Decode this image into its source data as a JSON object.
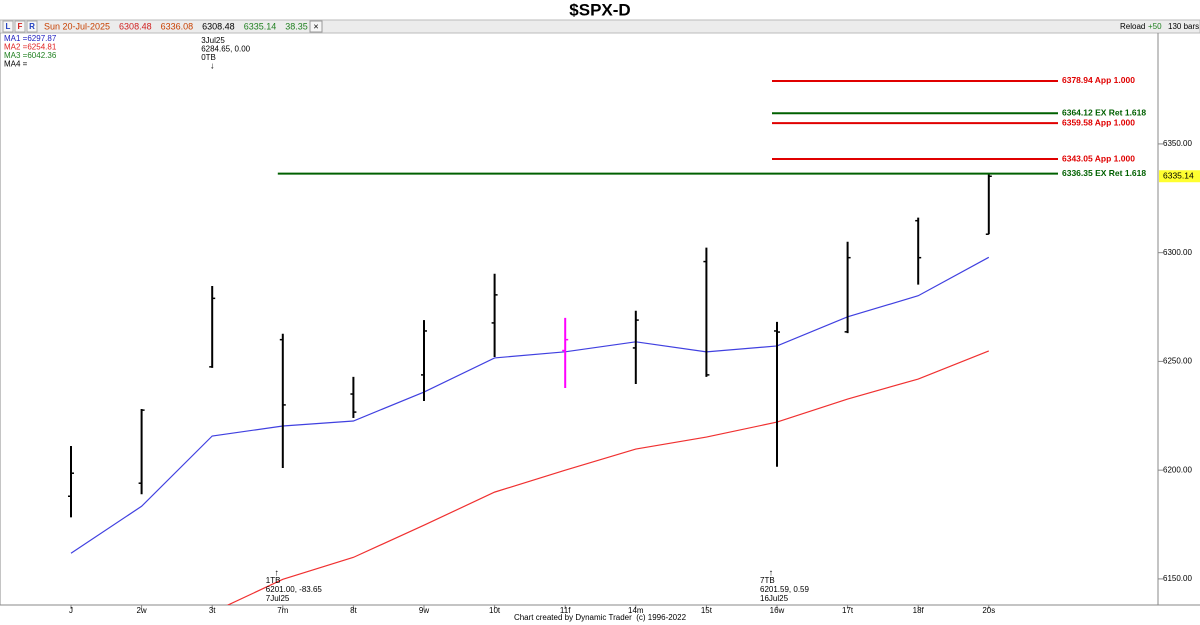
{
  "toolbar": {
    "buttons": [
      "L",
      "F",
      "R"
    ],
    "info": [
      {
        "text": "Sun 20-Jul-2025",
        "color": "#c84000"
      },
      {
        "text": "6308.48",
        "color": "#d02020"
      },
      {
        "text": "6336.08",
        "color": "#c84000"
      },
      {
        "text": "6308.48",
        "color": "#000000"
      },
      {
        "text": "6335.14",
        "color": "#208020"
      },
      {
        "text": "38.35",
        "color": "#208020"
      }
    ],
    "right": [
      {
        "text": "Reload",
        "color": "#000000"
      },
      {
        "text": "+50",
        "color": "#208020"
      },
      {
        "text": "130 bars",
        "color": "#000000"
      }
    ]
  },
  "chart_data": {
    "type": "ohlc",
    "title": "$SPX-D",
    "categories": [
      "J",
      "2w",
      "3t",
      "7m",
      "8t",
      "9w",
      "10t",
      "11f",
      "14m",
      "15t",
      "16w",
      "17t",
      "18f",
      "20s"
    ],
    "open": [
      6188.0,
      6194.0,
      6247.5,
      6260.0,
      6235.0,
      6243.8,
      6267.7,
      6255.0,
      6256.2,
      6295.9,
      6264.0,
      6263.6,
      6314.7,
      6308.48
    ],
    "high": [
      6211.1,
      6228.1,
      6284.65,
      6262.7,
      6242.9,
      6269.0,
      6290.3,
      6270.0,
      6273.3,
      6302.3,
      6268.2,
      6305.0,
      6316.1,
      6336.08
    ],
    "low": [
      6178.3,
      6188.9,
      6247.0,
      6201.0,
      6224.0,
      6231.8,
      6252.0,
      6237.8,
      6239.6,
      6242.9,
      6201.59,
      6263.0,
      6285.3,
      6308.48
    ],
    "close": [
      6198.6,
      6227.6,
      6279.0,
      6230.0,
      6226.7,
      6264.0,
      6280.6,
      6260.0,
      6269.0,
      6243.8,
      6263.5,
      6297.7,
      6297.7,
      6335.14
    ],
    "bar_colors": [
      "#000000",
      "#000000",
      "#000000",
      "#000000",
      "#000000",
      "#000000",
      "#000000",
      "#ff00ff",
      "#000000",
      "#000000",
      "#000000",
      "#000000",
      "#000000",
      "#000000"
    ],
    "ma_labels": [
      {
        "text": "MA1 =6297.87",
        "color": "#2020c0"
      },
      {
        "text": "MA2 =6254.81",
        "color": "#e02020"
      },
      {
        "text": "MA3 =6042.36",
        "color": "#208020"
      },
      {
        "text": "MA4 =",
        "color": "#000000"
      }
    ],
    "ma_lines": [
      {
        "color": "#4040e0",
        "values": [
          6161.8,
          6183.4,
          6215.7,
          6220.3,
          6222.6,
          6235.9,
          6251.6,
          6254.4,
          6259.0,
          6254.4,
          6257.1,
          6270.5,
          6280.2,
          6297.87
        ]
      },
      {
        "color": "#f03030",
        "values": [
          null,
          null,
          6134.6,
          6149.8,
          6159.9,
          6174.7,
          6189.9,
          6200.0,
          6209.7,
          6215.2,
          6222.1,
          6232.7,
          6241.9,
          6254.81
        ]
      }
    ],
    "levels": [
      {
        "value": 6378.94,
        "label": "6378.94 App 1.000",
        "color": "#e00000",
        "from": "16w"
      },
      {
        "value": 6364.12,
        "label": "6364.12 EX Ret 1.618",
        "color": "#006000",
        "from": "16w"
      },
      {
        "value": 6359.58,
        "label": "6359.58 App 1.000",
        "color": "#e00000",
        "from": "16w"
      },
      {
        "value": 6343.05,
        "label": "6343.05 App 1.000",
        "color": "#e00000",
        "from": "16w"
      },
      {
        "value": 6336.35,
        "label": "6336.35 EX Ret 1.618",
        "color": "#006000",
        "from": "7m"
      }
    ],
    "annotations": [
      {
        "at": "3t",
        "position": "top",
        "lines": [
          "3Jul25",
          "6284.65, 0.00",
          "0TB"
        ],
        "arrow": "↓"
      },
      {
        "at": "7m",
        "position": "bottom",
        "lines": [
          "1TB",
          "6201.00, -83.65",
          "7Jul25"
        ],
        "arrow": "↑"
      },
      {
        "at": "16w",
        "position": "bottom",
        "lines": [
          "7TB",
          "6201.59, 0.59",
          "16Jul25"
        ],
        "arrow": "↑"
      }
    ],
    "last_price": 6335.14,
    "last_price_color": "#ffff30",
    "ylim": [
      6138,
      6401
    ],
    "yticks": [
      {
        "value": 6150,
        "label": "6150.00"
      },
      {
        "value": 6200,
        "label": "6200.00"
      },
      {
        "value": 6250,
        "label": "6250.00"
      },
      {
        "value": 6300,
        "label": "6300.00"
      },
      {
        "value": 6350,
        "label": "6350.00"
      }
    ],
    "credit": "Chart created by Dynamic Trader  (c) 1996-2022"
  }
}
